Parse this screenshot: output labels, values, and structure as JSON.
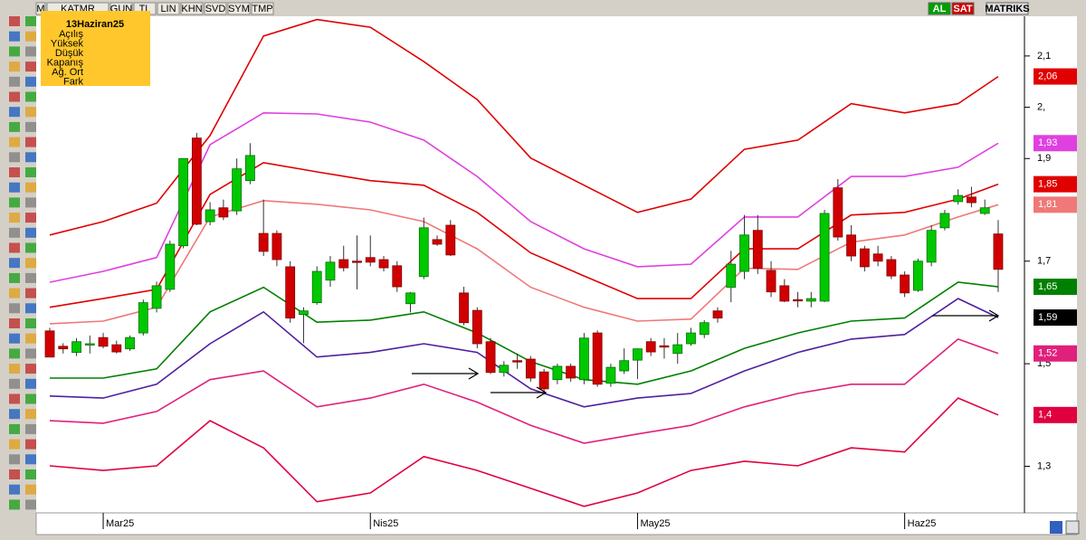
{
  "toolbar": {
    "items": [
      "M",
      "KATMR",
      "GUN",
      "TL",
      "LIN",
      "KHN",
      "SVD",
      "SYM",
      "TMP"
    ],
    "right": [
      "AL",
      "SAT",
      "MATRIKS"
    ]
  },
  "info_box": {
    "title": "13Haziran25",
    "rows": [
      "Açılış",
      "Yüksek",
      "Düşük",
      "Kapanış",
      "Ağ. Ort",
      "Fark"
    ]
  },
  "chart_data": {
    "type": "candlestick",
    "categories": [
      null,
      null,
      null,
      null,
      "Mar25",
      null,
      null,
      null,
      null,
      null,
      null,
      null,
      null,
      null,
      null,
      null,
      null,
      null,
      null,
      null,
      null,
      null,
      null,
      null,
      "Nis25",
      null,
      null,
      null,
      null,
      null,
      null,
      null,
      null,
      null,
      null,
      null,
      null,
      null,
      null,
      null,
      null,
      null,
      null,
      null,
      "May25",
      null,
      null,
      null,
      null,
      null,
      null,
      null,
      null,
      null,
      null,
      null,
      null,
      null,
      null,
      null,
      null,
      null,
      null,
      null,
      "Haz25",
      null,
      null,
      null,
      null,
      null,
      null,
      null
    ],
    "open": [
      1.564,
      1.534,
      1.522,
      1.537,
      1.551,
      1.537,
      1.529,
      1.56,
      1.608,
      1.645,
      1.73,
      1.94,
      1.777,
      1.804,
      1.798,
      1.857,
      1.754,
      1.754,
      1.689,
      1.596,
      1.619,
      1.663,
      1.703,
      1.7,
      1.707,
      1.703,
      1.691,
      1.617,
      1.67,
      1.742,
      1.77,
      1.638,
      1.604,
      1.543,
      1.483,
      1.506,
      1.509,
      1.484,
      1.469,
      1.495,
      1.469,
      1.56,
      1.462,
      1.486,
      1.507,
      1.543,
      1.535,
      1.52,
      1.539,
      1.557,
      1.603,
      1.649,
      1.68,
      1.76,
      1.682,
      1.652,
      1.625,
      1.622,
      1.622,
      1.843,
      1.751,
      1.724,
      1.714,
      1.703,
      1.673,
      1.643,
      1.698,
      1.765,
      1.816,
      1.825,
      1.793,
      1.753
    ],
    "high": [
      1.57,
      1.54,
      1.55,
      1.555,
      1.56,
      1.545,
      1.555,
      1.625,
      1.66,
      1.74,
      1.9,
      1.95,
      1.815,
      1.82,
      1.9,
      1.93,
      1.82,
      1.76,
      1.7,
      1.61,
      1.69,
      1.71,
      1.73,
      1.75,
      1.75,
      1.71,
      1.7,
      1.64,
      1.785,
      1.75,
      1.78,
      1.65,
      1.61,
      1.55,
      1.505,
      1.52,
      1.515,
      1.49,
      1.5,
      1.5,
      1.56,
      1.565,
      1.5,
      1.53,
      1.53,
      1.55,
      1.55,
      1.56,
      1.57,
      1.585,
      1.61,
      1.72,
      1.79,
      1.79,
      1.7,
      1.665,
      1.64,
      1.64,
      1.8,
      1.86,
      1.77,
      1.73,
      1.73,
      1.71,
      1.68,
      1.705,
      1.77,
      1.8,
      1.84,
      1.845,
      1.82,
      1.78
    ],
    "low": [
      1.513,
      1.52,
      1.515,
      1.52,
      1.53,
      1.52,
      1.525,
      1.555,
      1.6,
      1.64,
      1.725,
      1.77,
      1.77,
      1.78,
      1.79,
      1.85,
      1.71,
      1.69,
      1.58,
      1.54,
      1.615,
      1.65,
      1.68,
      1.645,
      1.69,
      1.68,
      1.64,
      1.6,
      1.665,
      1.73,
      1.71,
      1.575,
      1.53,
      1.48,
      1.475,
      1.49,
      1.465,
      1.445,
      1.46,
      1.465,
      1.46,
      1.455,
      1.455,
      1.48,
      1.47,
      1.515,
      1.51,
      1.5,
      1.535,
      1.55,
      1.58,
      1.62,
      1.665,
      1.675,
      1.63,
      1.62,
      1.61,
      1.61,
      1.62,
      1.74,
      1.7,
      1.68,
      1.69,
      1.665,
      1.63,
      1.64,
      1.69,
      1.76,
      1.81,
      1.805,
      1.79,
      1.64
    ],
    "close": [
      1.513,
      1.529,
      1.543,
      1.539,
      1.534,
      1.523,
      1.551,
      1.619,
      1.652,
      1.733,
      1.9,
      1.772,
      1.8,
      1.786,
      1.88,
      1.906,
      1.719,
      1.703,
      1.589,
      1.603,
      1.68,
      1.698,
      1.687,
      1.698,
      1.698,
      1.687,
      1.65,
      1.638,
      1.765,
      1.733,
      1.712,
      1.58,
      1.539,
      1.483,
      1.497,
      1.504,
      1.472,
      1.451,
      1.495,
      1.472,
      1.55,
      1.46,
      1.493,
      1.506,
      1.529,
      1.523,
      1.534,
      1.537,
      1.56,
      1.58,
      1.589,
      1.694,
      1.751,
      1.686,
      1.64,
      1.622,
      1.624,
      1.627,
      1.793,
      1.747,
      1.71,
      1.689,
      1.7,
      1.671,
      1.638,
      1.7,
      1.76,
      1.793,
      1.828,
      1.814,
      1.804,
      1.684
    ],
    "up_color": "#00c800",
    "down_color": "#d00000",
    "ylim": [
      1.211,
      2.195
    ],
    "yticks": [
      {
        "value": 2.1,
        "label": "2,1"
      },
      {
        "value": 2.0,
        "label": "2,"
      },
      {
        "value": 1.9,
        "label": "1,9"
      },
      {
        "value": 1.7,
        "label": "1,7"
      },
      {
        "value": 1.5,
        "label": "1,5"
      },
      {
        "value": 1.3,
        "label": "1,3"
      }
    ],
    "lines": {
      "x": [
        0,
        4,
        8,
        12,
        16,
        20,
        24,
        28,
        32,
        36,
        40,
        44,
        48,
        52,
        56,
        60,
        64,
        68,
        71
      ],
      "series": [
        {
          "color": "#e00000",
          "last_label": "2,06",
          "values": [
            1.751,
            1.777,
            1.813,
            1.945,
            2.139,
            2.171,
            2.156,
            2.089,
            2.015,
            1.901,
            1.848,
            1.795,
            1.821,
            1.918,
            1.936,
            2.007,
            1.989,
            2.007,
            2.06
          ]
        },
        {
          "color": "#e040e0",
          "last_label": "1,93",
          "values": [
            1.659,
            1.68,
            1.707,
            1.927,
            1.989,
            1.987,
            1.971,
            1.936,
            1.865,
            1.777,
            1.724,
            1.689,
            1.694,
            1.786,
            1.786,
            1.865,
            1.865,
            1.883,
            1.93
          ]
        },
        {
          "color": "#e00000",
          "last_label": "1,85",
          "values": [
            1.61,
            1.627,
            1.645,
            1.83,
            1.892,
            1.874,
            1.857,
            1.848,
            1.795,
            1.716,
            1.671,
            1.627,
            1.627,
            1.724,
            1.724,
            1.79,
            1.795,
            1.821,
            1.85
          ]
        },
        {
          "color": "#f07878",
          "last_label": "1,81",
          "values": [
            1.578,
            1.583,
            1.61,
            1.786,
            1.818,
            1.811,
            1.8,
            1.777,
            1.724,
            1.649,
            1.61,
            1.583,
            1.587,
            1.686,
            1.684,
            1.737,
            1.751,
            1.786,
            1.81
          ]
        },
        {
          "color": "#008000",
          "last_label": "1,65",
          "values": [
            1.472,
            1.472,
            1.49,
            1.601,
            1.649,
            1.581,
            1.585,
            1.601,
            1.56,
            1.504,
            1.469,
            1.46,
            1.486,
            1.53,
            1.56,
            1.583,
            1.589,
            1.659,
            1.65
          ]
        },
        {
          "color": "#5020a0",
          "label_color": "#000000",
          "last_label": "1,59",
          "values": [
            1.437,
            1.433,
            1.46,
            1.539,
            1.601,
            1.513,
            1.522,
            1.539,
            1.522,
            1.451,
            1.416,
            1.433,
            1.442,
            1.486,
            1.522,
            1.548,
            1.557,
            1.627,
            1.59
          ]
        },
        {
          "color": "#e0207a",
          "last_label": "1,52",
          "values": [
            1.389,
            1.384,
            1.407,
            1.469,
            1.486,
            1.416,
            1.433,
            1.46,
            1.425,
            1.38,
            1.345,
            1.363,
            1.38,
            1.416,
            1.442,
            1.46,
            1.46,
            1.548,
            1.52
          ]
        },
        {
          "color": "#e00040",
          "last_label": "1,4",
          "values": [
            1.301,
            1.292,
            1.301,
            1.389,
            1.336,
            1.231,
            1.248,
            1.319,
            1.292,
            1.257,
            1.222,
            1.248,
            1.292,
            1.31,
            1.301,
            1.336,
            1.328,
            1.433,
            1.4
          ]
        }
      ]
    }
  }
}
